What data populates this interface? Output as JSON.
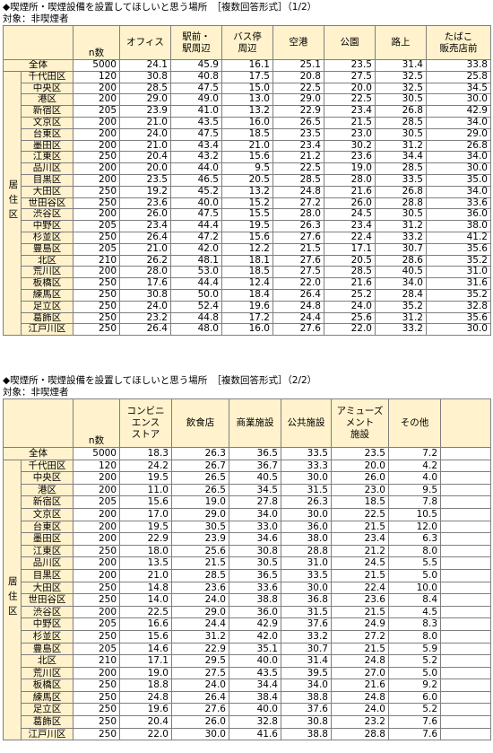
{
  "wards": [
    "千代田区",
    "中央区",
    "港区",
    "新宿区",
    "文京区",
    "台東区",
    "墨田区",
    "江東区",
    "品川区",
    "目黒区",
    "大田区",
    "世田谷区",
    "渋谷区",
    "中野区",
    "杉並区",
    "豊島区",
    "北区",
    "荒川区",
    "板橋区",
    "練馬区",
    "足立区",
    "葛飾区",
    "江戸川区"
  ],
  "n_values": [
    "120",
    "200",
    "200",
    "205",
    "200",
    "200",
    "200",
    "250",
    "200",
    "200",
    "250",
    "250",
    "200",
    "205",
    "250",
    "205",
    "210",
    "200",
    "250",
    "250",
    "250",
    "250",
    "250"
  ],
  "total_label": "全体",
  "total_n": "5000",
  "region_label": "居住区",
  "n_header": "n数",
  "table1": {
    "title": "◆喫煙所・喫煙設備を設置してほしいと思う場所　［複数回答形式］（1/2）",
    "subtitle": "対象：非喫煙者",
    "headers": [
      {
        "lines": [
          "オフィス"
        ]
      },
      {
        "lines": [
          "駅前・",
          "駅周辺"
        ]
      },
      {
        "lines": [
          "バス停",
          "周辺"
        ]
      },
      {
        "lines": [
          "空港"
        ]
      },
      {
        "lines": [
          "公園"
        ]
      },
      {
        "lines": [
          "路上"
        ]
      },
      {
        "lines": [
          "たばこ",
          "販売店前"
        ]
      }
    ],
    "total": [
      "24.1",
      "45.9",
      "16.1",
      "25.1",
      "23.5",
      "31.4",
      "33.8"
    ],
    "rows": [
      [
        "30.8",
        "40.8",
        "17.5",
        "20.8",
        "27.5",
        "32.5",
        "25.8"
      ],
      [
        "28.5",
        "47.5",
        "15.0",
        "22.5",
        "20.0",
        "32.5",
        "34.5"
      ],
      [
        "29.0",
        "49.0",
        "13.0",
        "29.0",
        "22.5",
        "30.5",
        "30.0"
      ],
      [
        "23.9",
        "41.0",
        "13.2",
        "22.9",
        "23.4",
        "26.8",
        "42.9"
      ],
      [
        "21.0",
        "43.5",
        "16.0",
        "26.5",
        "21.5",
        "28.5",
        "34.0"
      ],
      [
        "24.0",
        "47.5",
        "18.5",
        "23.5",
        "23.0",
        "30.5",
        "29.0"
      ],
      [
        "21.0",
        "43.4",
        "21.0",
        "23.4",
        "30.2",
        "31.2",
        "26.8"
      ],
      [
        "20.4",
        "43.2",
        "15.6",
        "21.2",
        "23.6",
        "34.4",
        "34.0"
      ],
      [
        "20.0",
        "44.0",
        "9.5",
        "22.5",
        "19.0",
        "28.5",
        "30.0"
      ],
      [
        "23.5",
        "46.5",
        "20.5",
        "28.5",
        "28.0",
        "33.5",
        "35.0"
      ],
      [
        "19.2",
        "45.2",
        "13.2",
        "24.8",
        "21.6",
        "26.8",
        "34.0"
      ],
      [
        "23.6",
        "40.0",
        "15.2",
        "27.2",
        "26.0",
        "28.8",
        "33.6"
      ],
      [
        "26.0",
        "47.5",
        "15.5",
        "28.0",
        "24.5",
        "30.5",
        "36.0"
      ],
      [
        "23.4",
        "44.4",
        "19.5",
        "26.3",
        "23.4",
        "31.2",
        "38.0"
      ],
      [
        "26.4",
        "47.2",
        "15.6",
        "27.6",
        "22.4",
        "33.2",
        "41.2"
      ],
      [
        "21.0",
        "42.0",
        "12.2",
        "21.5",
        "17.1",
        "30.7",
        "35.6"
      ],
      [
        "26.2",
        "48.1",
        "18.1",
        "27.6",
        "20.5",
        "28.6",
        "35.2"
      ],
      [
        "28.0",
        "53.0",
        "18.5",
        "27.5",
        "28.5",
        "40.5",
        "31.0"
      ],
      [
        "17.6",
        "44.4",
        "12.4",
        "22.0",
        "21.6",
        "34.0",
        "31.6"
      ],
      [
        "30.8",
        "50.0",
        "18.4",
        "26.4",
        "25.2",
        "28.4",
        "35.2"
      ],
      [
        "24.0",
        "52.4",
        "19.6",
        "24.8",
        "24.0",
        "35.2",
        "32.8"
      ],
      [
        "23.2",
        "44.8",
        "17.2",
        "24.4",
        "25.6",
        "31.2",
        "35.6"
      ],
      [
        "26.4",
        "48.0",
        "16.0",
        "27.6",
        "22.0",
        "33.2",
        "30.0"
      ]
    ]
  },
  "table2": {
    "title": "◆喫煙所・喫煙設備を設置してほしいと思う場所　［複数回答形式］（2/2）",
    "subtitle": "対象：非喫煙者",
    "headers": [
      {
        "lines": [
          "コンビニ",
          "エンス",
          "ストア"
        ]
      },
      {
        "lines": [
          "飲食店"
        ]
      },
      {
        "lines": [
          "商業施設"
        ]
      },
      {
        "lines": [
          "公共施設"
        ]
      },
      {
        "lines": [
          "アミューズ",
          "メント",
          "施設"
        ]
      },
      {
        "lines": [
          "その他"
        ]
      }
    ],
    "total": [
      "18.3",
      "26.3",
      "36.5",
      "33.5",
      "23.5",
      "7.2"
    ],
    "rows": [
      [
        "24.2",
        "26.7",
        "36.7",
        "33.3",
        "20.0",
        "4.2"
      ],
      [
        "19.5",
        "26.5",
        "40.5",
        "30.0",
        "26.0",
        "4.0"
      ],
      [
        "11.0",
        "26.5",
        "34.5",
        "31.5",
        "23.0",
        "9.5"
      ],
      [
        "15.6",
        "19.0",
        "27.8",
        "26.3",
        "18.5",
        "7.8"
      ],
      [
        "17.0",
        "29.0",
        "34.0",
        "30.0",
        "22.5",
        "10.5"
      ],
      [
        "19.5",
        "30.5",
        "33.0",
        "36.0",
        "21.5",
        "12.0"
      ],
      [
        "22.9",
        "23.9",
        "34.6",
        "38.0",
        "23.4",
        "6.3"
      ],
      [
        "18.0",
        "25.6",
        "30.8",
        "28.8",
        "21.2",
        "8.0"
      ],
      [
        "13.5",
        "21.5",
        "30.5",
        "31.0",
        "24.5",
        "5.5"
      ],
      [
        "21.0",
        "28.5",
        "36.5",
        "33.5",
        "21.5",
        "5.0"
      ],
      [
        "14.8",
        "23.6",
        "33.6",
        "30.0",
        "22.4",
        "10.0"
      ],
      [
        "14.0",
        "24.0",
        "38.8",
        "36.8",
        "23.6",
        "8.4"
      ],
      [
        "22.5",
        "29.0",
        "36.0",
        "31.5",
        "21.5",
        "4.5"
      ],
      [
        "16.6",
        "24.4",
        "42.9",
        "37.6",
        "24.9",
        "8.3"
      ],
      [
        "15.6",
        "31.2",
        "42.0",
        "33.2",
        "27.2",
        "8.0"
      ],
      [
        "14.6",
        "22.9",
        "35.1",
        "30.7",
        "21.5",
        "5.9"
      ],
      [
        "17.1",
        "29.5",
        "40.0",
        "31.4",
        "24.8",
        "5.2"
      ],
      [
        "19.0",
        "27.5",
        "43.5",
        "39.5",
        "27.0",
        "5.0"
      ],
      [
        "18.8",
        "24.0",
        "34.4",
        "34.0",
        "21.6",
        "9.2"
      ],
      [
        "24.8",
        "26.4",
        "38.4",
        "38.8",
        "24.8",
        "6.0"
      ],
      [
        "19.6",
        "27.6",
        "40.0",
        "37.6",
        "24.0",
        "5.2"
      ],
      [
        "20.4",
        "26.0",
        "32.8",
        "30.8",
        "23.2",
        "7.6"
      ],
      [
        "22.0",
        "30.0",
        "41.6",
        "38.8",
        "28.8",
        "7.6"
      ]
    ]
  }
}
